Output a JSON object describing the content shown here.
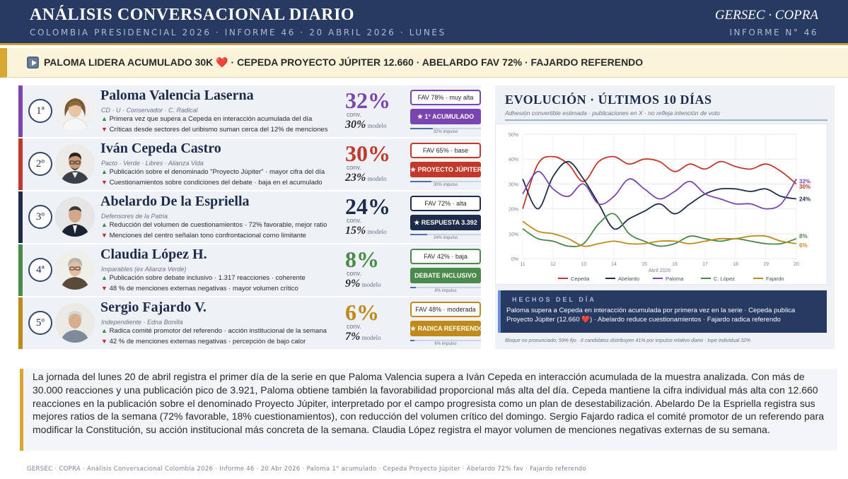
{
  "header": {
    "title": "ANÁLISIS CONVERSACIONAL DIARIO",
    "subtitle": "COLOMBIA PRESIDENCIAL 2026  ·  INFORME 46  ·  20 ABRIL 2026  ·  LUNES",
    "brand": "GERSEC · COPRA",
    "informe": "INFORME N° 46"
  },
  "headline": {
    "part1": "PALOMA LIDERA ACUMULADO 30K ",
    "heart": "❤️",
    "part2": " · CEPEDA PROYECTO JÚPITER 12.660 · ABELARDO FAV 72% · FAJARDO REFERENDO"
  },
  "colors": {
    "navy": "#263a62",
    "gold": "#d7a730",
    "paloma": "#7a45b0",
    "cepeda": "#c0392b",
    "abelardo": "#1e2b4a",
    "lopez": "#4a8a4a",
    "fajardo": "#c08a1a"
  },
  "candidates": [
    {
      "rank": "1ª",
      "name": "Paloma Valencia Laserna",
      "party": "CD · U · Conservador · C. Radical",
      "positive": "Primera vez que supera a Cepeda en interacción acumulada del día",
      "negative": "Críticas desde sectores del uribismo suman cerca del 12% de menciones",
      "pct": "32%",
      "conv": "conv.",
      "model_pct": "30%",
      "model": "modelo",
      "fav": "FAV 78% · muy alta",
      "badge": "★ 1° ACUMULADO",
      "impulso": "32% impulso",
      "impulso_value": 32,
      "color": "#7a45b0",
      "avatar": "paloma-avatar"
    },
    {
      "rank": "2º",
      "name": "Iván Cepeda Castro",
      "party": "Pacto · Verde · Libres · Alianza Vida",
      "positive": "Publicación sobre el denominado \"Proyecto Júpiter\" · mayor cifra del día",
      "negative": "Cuestionamientos sobre condiciones del debate · baja en el acumulado",
      "pct": "30%",
      "conv": "conv.",
      "model_pct": "23%",
      "model": "modelo",
      "fav": "FAV 65% · base",
      "badge": "★ PROYECTO JÚPITER",
      "impulso": "30% impulso",
      "impulso_value": 30,
      "color": "#c0392b",
      "avatar": "cepeda-avatar"
    },
    {
      "rank": "3º",
      "name": "Abelardo De la Espriella",
      "party": "Defensores de la Patria",
      "positive": "Reducción del volumen de cuestionamientos · 72% favorable, mejor ratio",
      "negative": "Menciones del centro señalan tono confrontacional como limitante",
      "pct": "24%",
      "conv": "conv.",
      "model_pct": "15%",
      "model": "modelo",
      "fav": "FAV 72% · alta",
      "badge": "★ RESPUESTA 3.392",
      "impulso": "24% impulso",
      "impulso_value": 24,
      "color": "#1e2b4a",
      "avatar": "abelardo-avatar"
    },
    {
      "rank": "4ª",
      "name": "Claudia López H.",
      "party": "Imparables (ex Alianza Verde)",
      "positive": "Publicación sobre debate inclusivo · 1.317 reacciones · coherente",
      "negative": "48 % de menciones externas negativas · mayor volumen crítico",
      "pct": "8%",
      "conv": "conv.",
      "model_pct": "9%",
      "model": "modelo",
      "fav": "FAV 42% · baja",
      "badge": "DEBATE INCLUSIVO",
      "impulso": "8% impulso",
      "impulso_value": 8,
      "color": "#4a8a4a",
      "avatar": "lopez-avatar"
    },
    {
      "rank": "5º",
      "name": "Sergio Fajardo V.",
      "party": "Independiente · Edna Bonilla",
      "positive": "Radica comité promotor del referendo · acción institucional de la semana",
      "negative": "42 % de menciones externas negativas · percepción de bajo calor",
      "pct": "6%",
      "conv": "conv.",
      "model_pct": "7%",
      "model": "modelo",
      "fav": "FAV 48% · moderada",
      "badge": "★ RADICA REFERENDO",
      "impulso": "6% impulso",
      "impulso_value": 6,
      "color": "#c08a1a",
      "avatar": "fajardo-avatar"
    }
  ],
  "chart": {
    "title": "EVOLUCIÓN · ÚLTIMOS 10 DÍAS",
    "subtitle": "Adhesión convertible estimada · publicaciones en X · no refleja intención de voto"
  },
  "chart_data": {
    "type": "line",
    "x": [
      11,
      11.5,
      12,
      12.5,
      13,
      13.5,
      14,
      14.5,
      15,
      15.5,
      16,
      16.5,
      17,
      17.5,
      18,
      18.5,
      19,
      19.5,
      20
    ],
    "xticks": [
      11,
      12,
      13,
      14,
      15,
      16,
      17,
      18,
      19,
      20
    ],
    "xlabel": "Abril 2026",
    "ylabel": "",
    "ylim": [
      0,
      50
    ],
    "yticks": [
      "0%",
      "10%",
      "20%",
      "30%",
      "40%",
      "50%"
    ],
    "grid": true,
    "legend": "bottom",
    "series": [
      {
        "name": "Cepeda",
        "color": "#c0392b",
        "values": [
          20,
          38,
          41,
          38,
          31,
          39,
          41,
          38,
          40,
          39,
          35,
          38,
          36,
          39,
          37,
          36,
          38,
          35,
          30
        ]
      },
      {
        "name": "Abelardo",
        "color": "#1e2b4a",
        "values": [
          32,
          20,
          33,
          39,
          32,
          22,
          12,
          16,
          19,
          22,
          18,
          22,
          26,
          28,
          28,
          27,
          28,
          25,
          24
        ]
      },
      {
        "name": "Paloma",
        "color": "#7a45b0",
        "values": [
          26,
          35,
          28,
          25,
          30,
          22,
          25,
          32,
          28,
          24,
          27,
          31,
          26,
          24,
          22,
          22,
          20,
          22,
          32
        ]
      },
      {
        "name": "C. López",
        "color": "#4a8a4a",
        "values": [
          12,
          8,
          7,
          5,
          6,
          14,
          18,
          10,
          7,
          5,
          6,
          9,
          8,
          7,
          8,
          7,
          6,
          6,
          8
        ]
      },
      {
        "name": "Fajardo",
        "color": "#c08a1a",
        "values": [
          15,
          11,
          10,
          8,
          5,
          6,
          7,
          6,
          6,
          7,
          7,
          6,
          7,
          8,
          8,
          9,
          9,
          7,
          6
        ]
      }
    ],
    "end_labels": [
      "32%",
      "30%",
      "24%",
      "8%",
      "6%"
    ]
  },
  "hechos": {
    "title": "HECHOS DEL DÍA",
    "body": "Paloma supera a Cepeda en interacción acumulada por primera vez en la serie · Cepeda publica Proyecto Júpiter (12.660 ❤️) · Abelardo reduce cuestionamientos · Fajardo radica referendo"
  },
  "bloque_note": "Bloque no pronunciado: 59% fijo · 6 candidatos distribuyen 41% por impulso relativo diario · tope individual 32%",
  "summary": "La jornada del lunes 20 de abril registra el primer día de la serie en que Paloma Valencia supera a Iván Cepeda en interacción acumulada de la muestra analizada. Con más de 30.000 reacciones y una publicación pico de 3.921, Paloma obtiene también la favorabilidad proporcional más alta del día. Cepeda mantiene la cifra individual más alta con 12.660 reacciones en la publicación sobre el denominado Proyecto Júpiter, interpretado por el campo progresista como un plan de desestabilización. Abelardo De la Espriella registra sus mejores ratios de la semana (72% favorable, 18% cuestionamientos), con reducción del volumen crítico del domingo. Sergio Fajardo radica el comité promotor de un referendo para modificar la Constitución, su acción institucional más concreta de la semana. Claudia López registra el mayor volumen de menciones negativas externas de su semana.",
  "footer": "GERSEC · COPRA  ·  Análisis Conversacional Colombia 2026  ·  Informe 46  ·  20 Abr 2026  ·  Paloma 1° acumulado · Cepeda Proyecto Júpiter · Abelardo 72% fav · Fajardo referendo"
}
